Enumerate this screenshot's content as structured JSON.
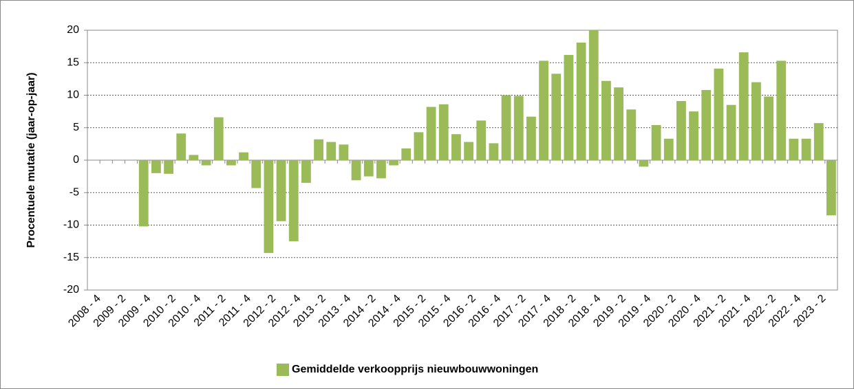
{
  "chart_data": {
    "type": "bar",
    "y_label": "Procentuele mutatie (jaar-op-jaar)",
    "categories": [
      "2008 - 4",
      null,
      "2009 - 2",
      null,
      "2009 - 4",
      null,
      "2010 - 2",
      null,
      "2010 - 4",
      null,
      "2011 - 2",
      null,
      "2011 - 4",
      null,
      "2012 - 2",
      null,
      "2012 - 4",
      null,
      "2013 - 2",
      null,
      "2013 - 4",
      null,
      "2014 - 2",
      null,
      "2014 - 4",
      null,
      "2015 - 2",
      null,
      "2015 - 4",
      null,
      "2016 - 2",
      null,
      "2016 - 4",
      null,
      "2017 - 2",
      null,
      "2017 - 4",
      null,
      "2018 - 2",
      null,
      "2018 - 4",
      null,
      "2019 - 2",
      null,
      "2019 - 4",
      null,
      "2020 - 2",
      null,
      "2020 - 4",
      null,
      "2021 - 2",
      null,
      "2021 - 4",
      null,
      "2022 - 2",
      null,
      "2022 - 4",
      null,
      "2023 - 2",
      null
    ],
    "series": [
      {
        "name": "Gemiddelde verkoopprijs nieuwbouwwoningen",
        "color": "#9bbb59",
        "values": [
          null,
          null,
          null,
          null,
          -10.2,
          -2,
          -2.1,
          4.1,
          0.8,
          -0.8,
          6.6,
          -0.8,
          1.2,
          -4.3,
          -14.3,
          -9.4,
          -12.5,
          -3.5,
          3.2,
          2.8,
          2.4,
          -3.1,
          -2.5,
          -2.8,
          -0.8,
          1.8,
          4.3,
          8.2,
          8.6,
          4.0,
          2.8,
          6.1,
          2.6,
          10,
          9.9,
          6.7,
          15.3,
          13.3,
          16.2,
          18.1,
          20,
          12.2,
          11.2,
          7.8,
          -1,
          5.4,
          3.3,
          9.1,
          7.5,
          10.8,
          14.1,
          8.5,
          16.6,
          12,
          9.8,
          15.3,
          3.3,
          3.3,
          5.7,
          -8.5
        ]
      }
    ],
    "ylim": [
      -20,
      20
    ],
    "yticks": [
      -20,
      -15,
      -10,
      -5,
      0,
      5,
      10,
      15,
      20
    ],
    "grid": true,
    "legend": "bottom"
  }
}
